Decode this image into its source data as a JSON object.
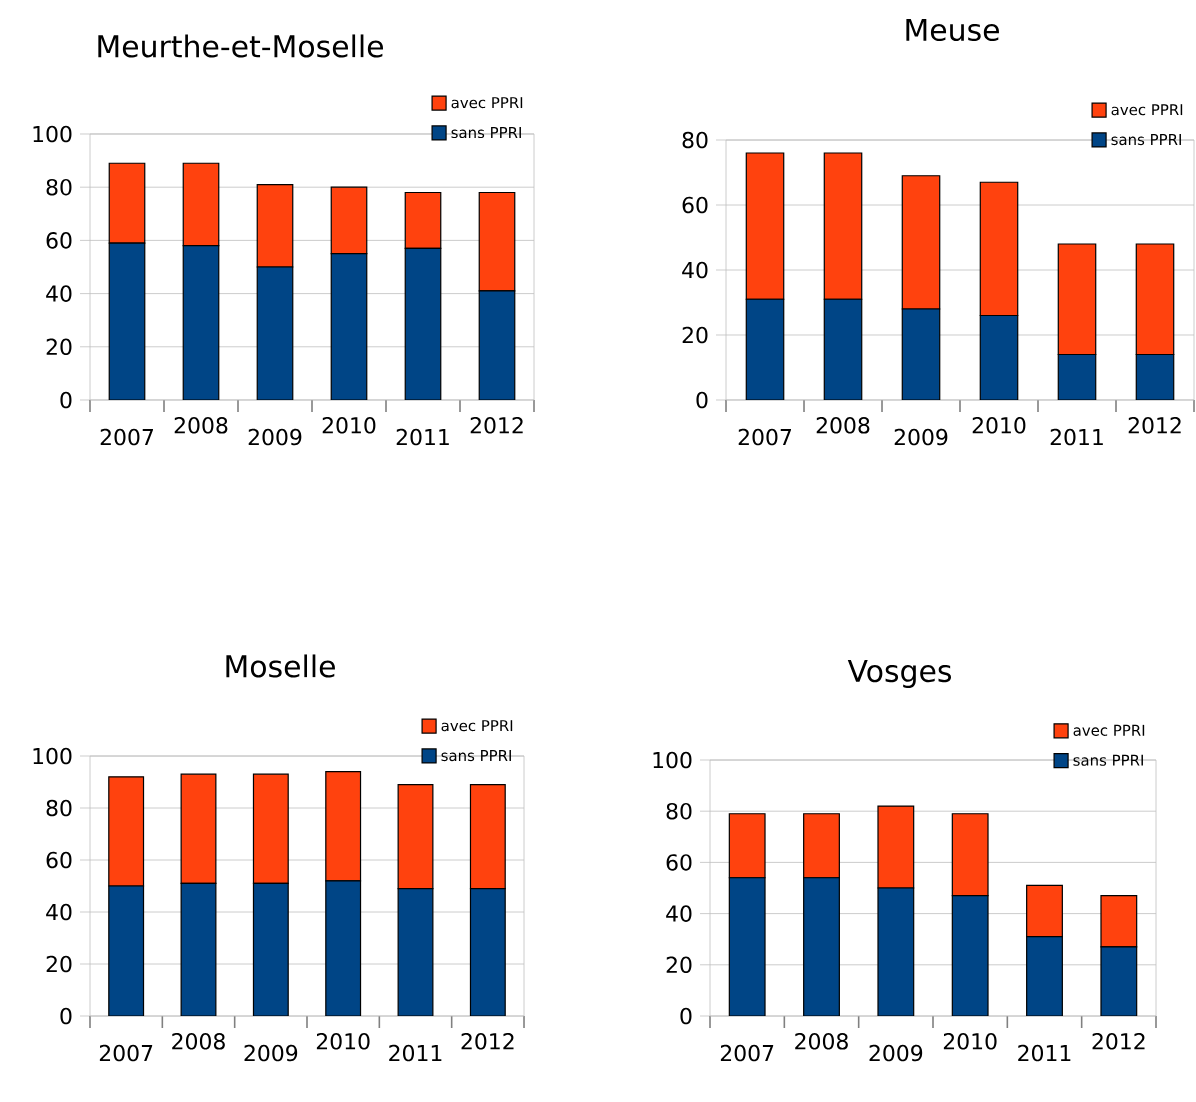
{
  "chart_data": [
    {
      "type": "bar",
      "stacked": true,
      "title": "Meurthe-et-Moselle",
      "categories": [
        "2007",
        "2008",
        "2009",
        "2010",
        "2011",
        "2012"
      ],
      "series": [
        {
          "name": "sans PPRI",
          "color": "#004586",
          "values": [
            59,
            58,
            50,
            55,
            57,
            41
          ]
        },
        {
          "name": "avec PPRI",
          "color": "#ff420e",
          "values": [
            30,
            31,
            31,
            25,
            21,
            37
          ]
        }
      ],
      "ylim": [
        0,
        100
      ],
      "yticks": [
        0,
        20,
        40,
        60,
        80,
        100
      ],
      "grid": "y",
      "legend": "top right"
    },
    {
      "type": "bar",
      "stacked": true,
      "title": "Meuse",
      "categories": [
        "2007",
        "2008",
        "2009",
        "2010",
        "2011",
        "2012"
      ],
      "series": [
        {
          "name": "sans PPRI",
          "color": "#004586",
          "values": [
            31,
            31,
            28,
            26,
            14,
            14
          ]
        },
        {
          "name": "avec PPRI",
          "color": "#ff420e",
          "values": [
            45,
            45,
            41,
            41,
            34,
            34
          ]
        }
      ],
      "ylim": [
        0,
        80
      ],
      "yticks": [
        0,
        20,
        40,
        60,
        80
      ],
      "grid": "y",
      "legend": "top right"
    },
    {
      "type": "bar",
      "stacked": true,
      "title": "Moselle",
      "categories": [
        "2007",
        "2008",
        "2009",
        "2010",
        "2011",
        "2012"
      ],
      "series": [
        {
          "name": "sans PPRI",
          "color": "#004586",
          "values": [
            50,
            51,
            51,
            52,
            49,
            49
          ]
        },
        {
          "name": "avec PPRI",
          "color": "#ff420e",
          "values": [
            42,
            42,
            42,
            42,
            40,
            40
          ]
        }
      ],
      "ylim": [
        0,
        100
      ],
      "yticks": [
        0,
        20,
        40,
        60,
        80,
        100
      ],
      "grid": "y",
      "legend": "top right"
    },
    {
      "type": "bar",
      "stacked": true,
      "title": "Vosges",
      "categories": [
        "2007",
        "2008",
        "2009",
        "2010",
        "2011",
        "2012"
      ],
      "series": [
        {
          "name": "sans PPRI",
          "color": "#004586",
          "values": [
            54,
            54,
            50,
            47,
            31,
            27
          ]
        },
        {
          "name": "avec PPRI",
          "color": "#ff420e",
          "values": [
            25,
            25,
            32,
            32,
            20,
            20
          ]
        }
      ],
      "ylim": [
        0,
        100
      ],
      "yticks": [
        0,
        20,
        40,
        60,
        80,
        100
      ],
      "grid": "y",
      "legend": "top right"
    }
  ]
}
